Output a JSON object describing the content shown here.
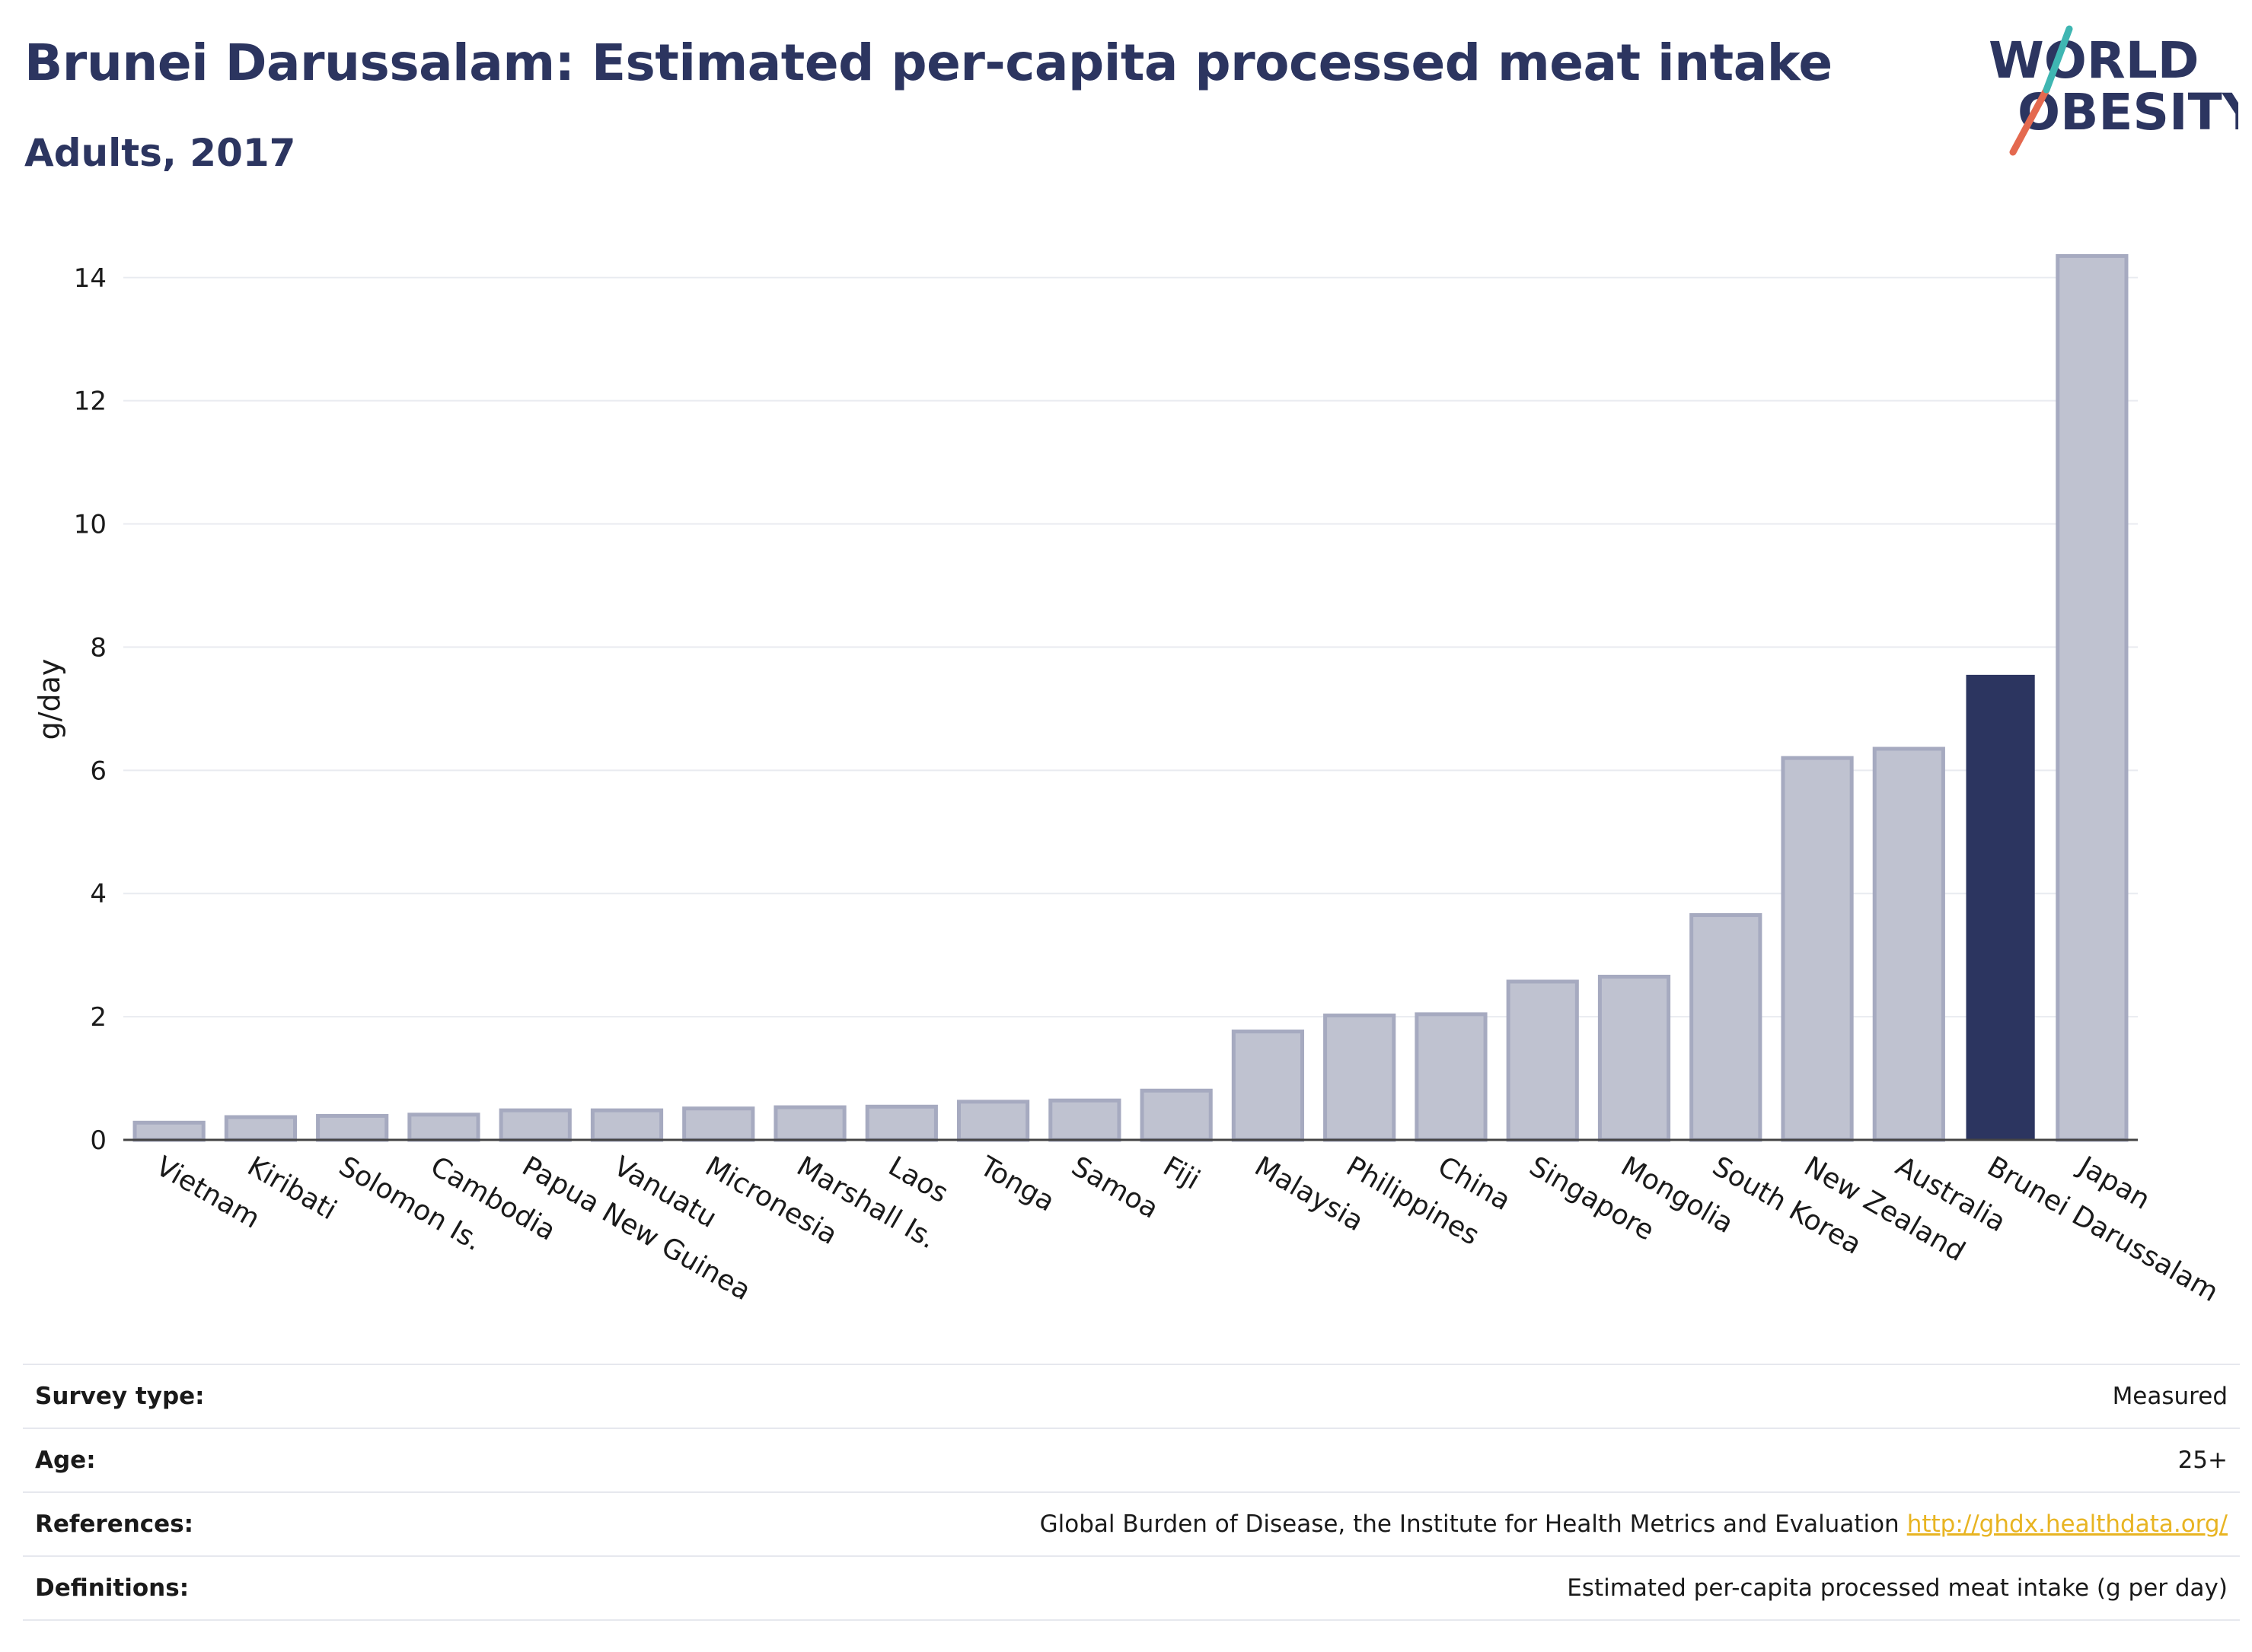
{
  "header": {
    "title": "Brunei Darussalam: Estimated per-capita processed meat intake",
    "subtitle": "Adults, 2017",
    "logo_line1": "WORLD",
    "logo_line2": "OBESITY"
  },
  "colors": {
    "highlight_bar": "#2c3560",
    "other_bar": "#bfc2d0",
    "other_bar_border": "#a6aac0",
    "text_primary": "#2c3560",
    "logo_slash_teal": "#3fb6b2",
    "logo_slash_red": "#e4694f",
    "link": "#e8b422"
  },
  "chart_data": {
    "type": "bar",
    "ylabel": "g/day",
    "xlabel": "",
    "ylim": [
      0,
      14.8
    ],
    "yticks": [
      0,
      2,
      4,
      6,
      8,
      10,
      12,
      14
    ],
    "grid": true,
    "highlight": "Brunei Darussalam",
    "categories": [
      "Vietnam",
      "Kiribati",
      "Solomon Is.",
      "Cambodia",
      "Papua New Guinea",
      "Vanuatu",
      "Micronesia",
      "Marshall Is.",
      "Laos",
      "Tonga",
      "Samoa",
      "Fiji",
      "Malaysia",
      "Philippines",
      "China",
      "Singapore",
      "Mongolia",
      "South Korea",
      "New Zealand",
      "Australia",
      "Brunei Darussalam",
      "Japan"
    ],
    "values": [
      0.28,
      0.37,
      0.39,
      0.41,
      0.48,
      0.48,
      0.51,
      0.53,
      0.54,
      0.62,
      0.64,
      0.8,
      1.76,
      2.02,
      2.04,
      2.57,
      2.65,
      3.65,
      6.2,
      6.35,
      7.55,
      14.35
    ]
  },
  "info": {
    "rows": [
      {
        "label": "Survey type:",
        "value": "Measured"
      },
      {
        "label": "Age:",
        "value": "25+"
      },
      {
        "label": "References:",
        "value": "Global Burden of Disease, the Institute for Health Metrics and Evaluation",
        "link": "http://ghdx.healthdata.org/"
      },
      {
        "label": "Definitions:",
        "value": "Estimated per-capita processed meat intake (g per day)"
      }
    ]
  }
}
